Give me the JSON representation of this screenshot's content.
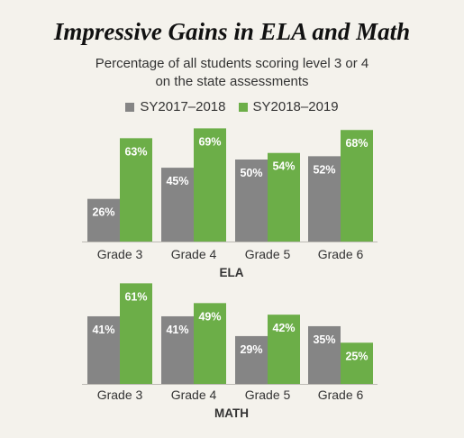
{
  "title": "Impressive Gains in ELA and Math",
  "subtitle_line1": "Percentage of all students scoring level 3 or 4",
  "subtitle_line2": "on the state assessments",
  "colors": {
    "series1": "#858585",
    "series2": "#6cae48"
  },
  "chart_data": [
    {
      "type": "bar",
      "title": "ELA",
      "categories": [
        "Grade 3",
        "Grade 4",
        "Grade 5",
        "Grade 6"
      ],
      "series": [
        {
          "name": "SY2017–2018",
          "values": [
            26,
            45,
            50,
            52
          ],
          "labels": [
            "26%",
            "45%",
            "50%",
            "52%"
          ]
        },
        {
          "name": "SY2018–2019",
          "values": [
            63,
            69,
            54,
            68
          ],
          "labels": [
            "63%",
            "69%",
            "54%",
            "68%"
          ]
        }
      ],
      "legend": "top-center",
      "grid": false
    },
    {
      "type": "bar",
      "title": "MATH",
      "categories": [
        "Grade 3",
        "Grade 4",
        "Grade 5",
        "Grade 6"
      ],
      "series": [
        {
          "name": "SY2017–2018",
          "values": [
            41,
            41,
            29,
            35
          ],
          "labels": [
            "41%",
            "41%",
            "29%",
            "35%"
          ]
        },
        {
          "name": "SY2018–2019",
          "values": [
            61,
            49,
            42,
            25
          ],
          "labels": [
            "61%",
            "49%",
            "42%",
            "25%"
          ]
        }
      ],
      "grid": false
    }
  ]
}
